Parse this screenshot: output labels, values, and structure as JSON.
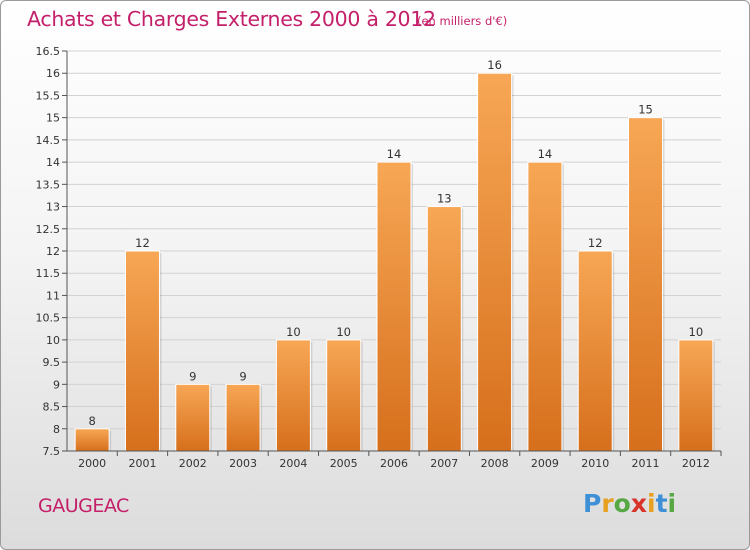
{
  "header": {
    "title": "Achats et Charges Externes 2000 à 2012",
    "unit": "(en milliers d'€)"
  },
  "footer": {
    "commune": "GAUGEAC",
    "logo_letters": [
      "P",
      "r",
      "o",
      "x",
      "i",
      "t",
      "i"
    ],
    "logo_colors": [
      "#3d8fd6",
      "#e8a020",
      "#56a844",
      "#d8342c",
      "#e8a020",
      "#3d8fd6",
      "#56a844"
    ]
  },
  "chart_data": {
    "type": "bar",
    "title": "Achats et Charges Externes 2000 à 2012",
    "subtitle": "(en milliers d'€)",
    "xlabel": "",
    "ylabel": "",
    "categories": [
      "2000",
      "2001",
      "2002",
      "2003",
      "2004",
      "2005",
      "2006",
      "2007",
      "2008",
      "2009",
      "2010",
      "2011",
      "2012"
    ],
    "values": [
      8,
      12,
      9,
      9,
      10,
      10,
      14,
      13,
      16,
      14,
      12,
      15,
      10
    ],
    "ylim": [
      7.5,
      16.5
    ],
    "yticks": [
      "7.5",
      "8",
      "8.5",
      "9",
      "9.5",
      "10",
      "10.5",
      "11",
      "11.5",
      "12",
      "12.5",
      "13",
      "13.5",
      "14",
      "14.5",
      "15",
      "15.5",
      "16",
      "16.5"
    ],
    "grid": true,
    "colors": {
      "bar_top": "#f7a755",
      "bar_bottom": "#d66f1c",
      "grid": "#d2d2d2",
      "axis": "#555555"
    }
  }
}
